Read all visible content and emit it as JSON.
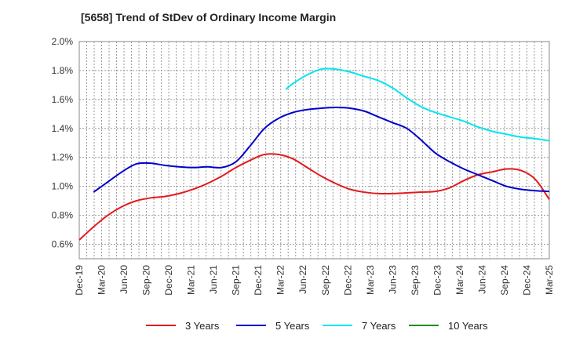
{
  "chart_data": {
    "type": "line",
    "title": "[5658]  Trend of StDev of Ordinary Income Margin",
    "xlabel": "",
    "ylabel": "",
    "ylim": [
      0.5,
      2.0
    ],
    "yticks": [
      "0.6%",
      "0.8%",
      "1.0%",
      "1.2%",
      "1.4%",
      "1.6%",
      "1.8%",
      "2.0%"
    ],
    "x_ticks": [
      "Dec-19",
      "Mar-20",
      "Jun-20",
      "Sep-20",
      "Dec-20",
      "Mar-21",
      "Jun-21",
      "Sep-21",
      "Dec-21",
      "Mar-22",
      "Jun-22",
      "Sep-22",
      "Dec-22",
      "Mar-23",
      "Jun-23",
      "Sep-23",
      "Dec-23",
      "Mar-24",
      "Jun-24",
      "Sep-24",
      "Dec-24",
      "Mar-25"
    ],
    "grid": true,
    "legend_position": "bottom",
    "series": [
      {
        "name": "3 Years",
        "color": "#e31a1c",
        "values": [
          [
            0,
            0.63
          ],
          [
            1,
            0.72
          ],
          [
            2,
            0.8
          ],
          [
            3,
            0.86
          ],
          [
            4,
            0.9
          ],
          [
            5,
            0.92
          ],
          [
            6,
            0.93
          ],
          [
            7,
            0.95
          ],
          [
            8,
            0.98
          ],
          [
            9,
            1.02
          ],
          [
            10,
            1.07
          ],
          [
            11,
            1.13
          ],
          [
            12,
            1.18
          ],
          [
            13,
            1.22
          ],
          [
            14,
            1.22
          ],
          [
            15,
            1.19
          ],
          [
            16,
            1.13
          ],
          [
            17,
            1.07
          ],
          [
            18,
            1.02
          ],
          [
            19,
            0.98
          ],
          [
            20,
            0.96
          ],
          [
            21,
            0.95
          ],
          [
            22,
            0.95
          ],
          [
            23,
            0.955
          ],
          [
            24,
            0.96
          ],
          [
            25,
            0.965
          ],
          [
            26,
            0.99
          ],
          [
            27,
            1.04
          ],
          [
            28,
            1.08
          ],
          [
            29,
            1.1
          ],
          [
            30,
            1.12
          ],
          [
            31,
            1.11
          ],
          [
            32,
            1.05
          ],
          [
            33,
            0.91
          ]
        ]
      },
      {
        "name": "5 Years",
        "color": "#0000cc",
        "values": [
          [
            1,
            0.96
          ],
          [
            2,
            1.03
          ],
          [
            3,
            1.1
          ],
          [
            4,
            1.155
          ],
          [
            5,
            1.16
          ],
          [
            6,
            1.145
          ],
          [
            7,
            1.135
          ],
          [
            8,
            1.13
          ],
          [
            9,
            1.135
          ],
          [
            10,
            1.13
          ],
          [
            11,
            1.17
          ],
          [
            12,
            1.28
          ],
          [
            13,
            1.4
          ],
          [
            14,
            1.47
          ],
          [
            15,
            1.51
          ],
          [
            16,
            1.53
          ],
          [
            17,
            1.54
          ],
          [
            18,
            1.545
          ],
          [
            19,
            1.54
          ],
          [
            20,
            1.52
          ],
          [
            21,
            1.48
          ],
          [
            22,
            1.44
          ],
          [
            23,
            1.4
          ],
          [
            24,
            1.32
          ],
          [
            25,
            1.23
          ],
          [
            26,
            1.17
          ],
          [
            27,
            1.12
          ],
          [
            28,
            1.08
          ],
          [
            29,
            1.04
          ],
          [
            30,
            1.0
          ],
          [
            31,
            0.98
          ],
          [
            32,
            0.97
          ],
          [
            33,
            0.965
          ]
        ]
      },
      {
        "name": "7 Years",
        "color": "#00e5ee",
        "values": [
          [
            14.5,
            1.67
          ],
          [
            15,
            1.71
          ],
          [
            16,
            1.77
          ],
          [
            17,
            1.81
          ],
          [
            18,
            1.81
          ],
          [
            19,
            1.79
          ],
          [
            20,
            1.76
          ],
          [
            21,
            1.73
          ],
          [
            22,
            1.68
          ],
          [
            23,
            1.61
          ],
          [
            24,
            1.55
          ],
          [
            25,
            1.51
          ],
          [
            26,
            1.48
          ],
          [
            27,
            1.45
          ],
          [
            28,
            1.41
          ],
          [
            29,
            1.38
          ],
          [
            30,
            1.36
          ],
          [
            31,
            1.34
          ],
          [
            32,
            1.33
          ],
          [
            33,
            1.315
          ]
        ]
      },
      {
        "name": "10 Years",
        "color": "#228b22",
        "values": []
      }
    ]
  }
}
